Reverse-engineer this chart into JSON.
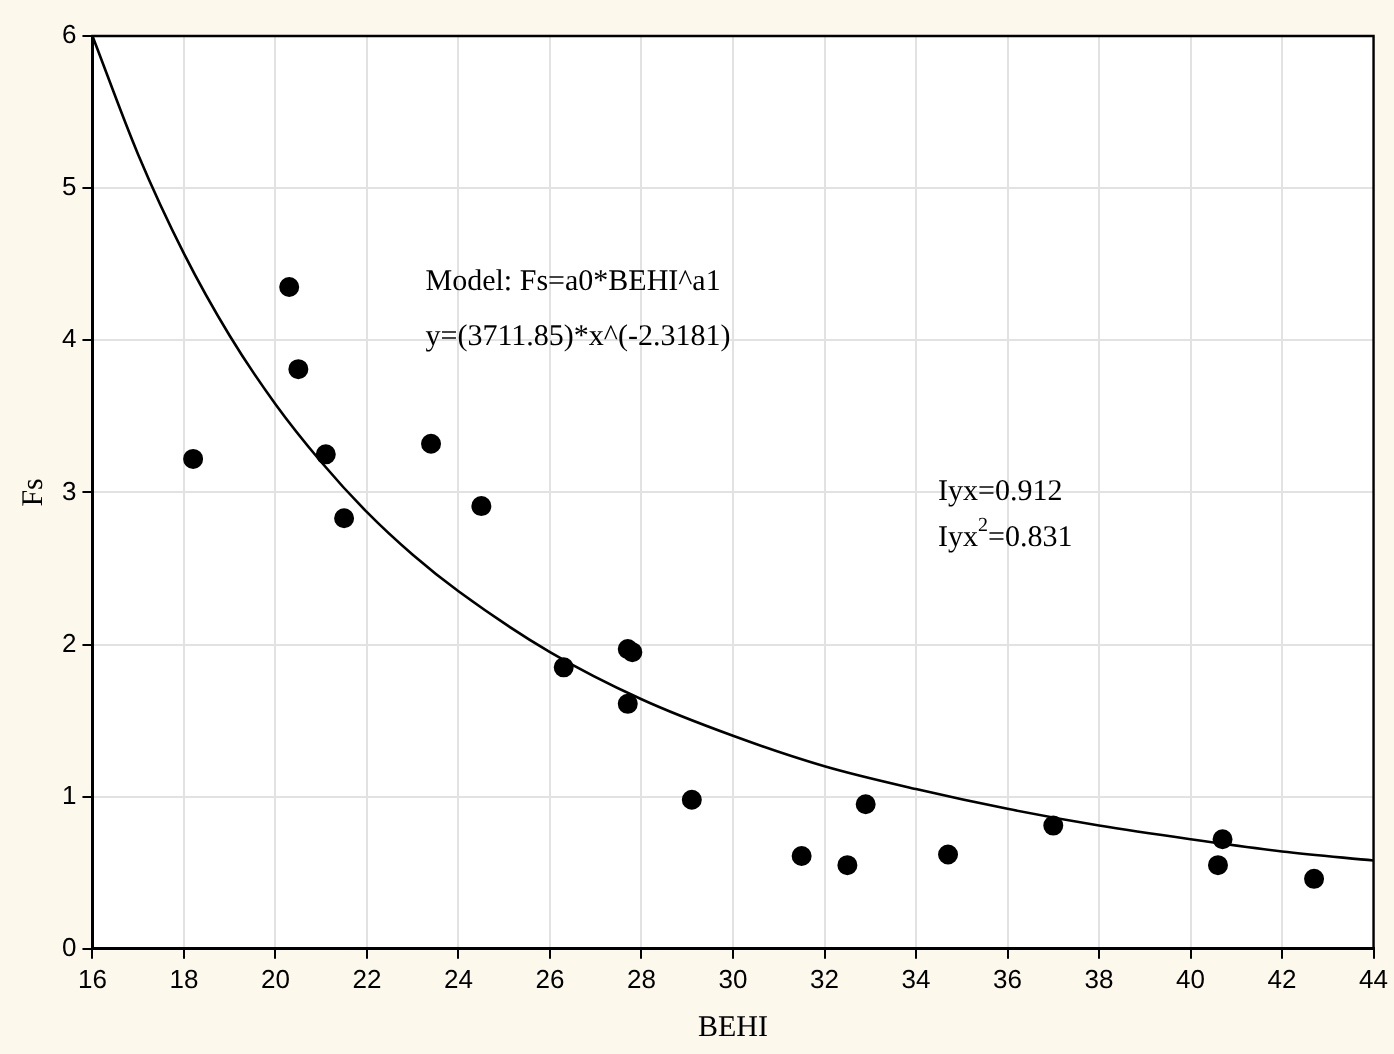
{
  "chart_data": {
    "type": "scatter",
    "xlabel": "BEHI",
    "ylabel": "Fs",
    "xlim": [
      16,
      44
    ],
    "xticks": [
      16,
      18,
      20,
      22,
      24,
      26,
      28,
      30,
      32,
      34,
      36,
      38,
      40,
      42,
      44
    ],
    "ylim": [
      0,
      6
    ],
    "yticks": [
      0,
      1,
      2,
      3,
      4,
      5,
      6
    ],
    "grid": true,
    "legend": false,
    "marker": "circle",
    "annotations": [
      "Model: Fs=a0*BEHI^a1",
      "y=(3711.85)*x^(-2.3181)",
      "Iyx=0.912",
      "Iyx$^{2}$=0.831"
    ],
    "series": [
      {
        "type": "scatter",
        "color": "#000000",
        "x": [
          18.2,
          20.3,
          20.5,
          21.1,
          21.5,
          23.4,
          24.5,
          26.3,
          27.7,
          27.8,
          27.7,
          29.1,
          31.5,
          32.5,
          32.9,
          34.7,
          37.0,
          40.6,
          40.7,
          42.7
        ],
        "values": [
          3.22,
          4.35,
          3.81,
          3.25,
          2.83,
          3.32,
          2.91,
          1.85,
          1.97,
          1.95,
          1.61,
          0.98,
          0.61,
          0.55,
          0.95,
          0.62,
          0.81,
          0.55,
          0.72,
          0.46
        ]
      },
      {
        "type": "line",
        "color": "#000000",
        "marker": "none",
        "line_style": "solid",
        "x": [
          16,
          17,
          18,
          19,
          20,
          21,
          22,
          23,
          24,
          26,
          28,
          30,
          32,
          34,
          36,
          38,
          40,
          42,
          44
        ],
        "values": [
          6.0,
          5.22,
          4.57,
          4.03,
          3.58,
          3.2,
          2.87,
          2.59,
          2.35,
          1.95,
          1.64,
          1.4,
          1.2,
          1.05,
          0.92,
          0.81,
          0.72,
          0.64,
          0.58
        ]
      }
    ]
  }
}
